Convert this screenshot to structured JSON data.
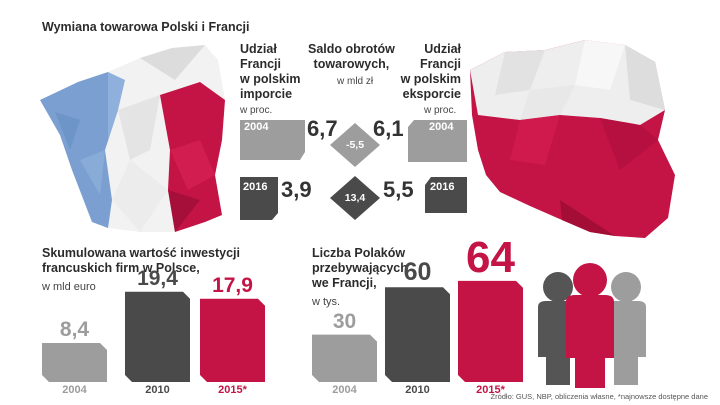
{
  "title": "Wymiana towarowa Polski i Francji",
  "trade": {
    "import_header": [
      "Udział",
      "Francji",
      "w polskim",
      "imporcie"
    ],
    "import_unit": "w proc.",
    "balance_header": [
      "Saldo obrotów",
      "towarowych,"
    ],
    "balance_unit": "w mld zł",
    "export_header": [
      "Udział",
      "Francji",
      "w polskim",
      "eksporcie"
    ],
    "export_unit": "w proc.",
    "rows": [
      {
        "year": "2004",
        "import_value": "6,7",
        "balance": "-5,5",
        "export_value": "6,1"
      },
      {
        "year": "2016",
        "import_value": "3,9",
        "balance": "13,4",
        "export_value": "5,5"
      }
    ]
  },
  "investment": {
    "title_lines": [
      "Skumulowana wartość inwestycji",
      "francuskich firm w Polsce,"
    ],
    "unit": "w mld euro"
  },
  "people": {
    "title_lines": [
      "Liczba Polaków",
      "przebywających",
      "we Francji,"
    ],
    "unit": "w tys."
  },
  "source": "Źródło: GUS, NBP, obliczenia własne, *najnowsze dostępne dane",
  "colors": {
    "gray": "#9d9d9d",
    "dark": "#4a4a4a",
    "crimson": "#c31445",
    "france_blue": "#7a9fd0",
    "poland_red": "#c31445"
  },
  "chart_data": [
    {
      "type": "bar",
      "categories": [
        "2004",
        "2010",
        "2015*"
      ],
      "values": [
        8.4,
        19.4,
        17.9
      ],
      "value_labels": [
        "8,4",
        "19,4",
        "17,9"
      ],
      "title": "Skumulowana wartość inwestycji francuskich firm w Polsce,",
      "ylabel": "w mld euro",
      "ylim": [
        0,
        25
      ]
    },
    {
      "type": "bar",
      "categories": [
        "2004",
        "2010",
        "2015*"
      ],
      "values": [
        30,
        60,
        64
      ],
      "value_labels": [
        "30",
        "60",
        "64"
      ],
      "title": "Liczba Polaków przebywających we Francji,",
      "ylabel": "w tys.",
      "ylim": [
        0,
        80
      ]
    }
  ]
}
